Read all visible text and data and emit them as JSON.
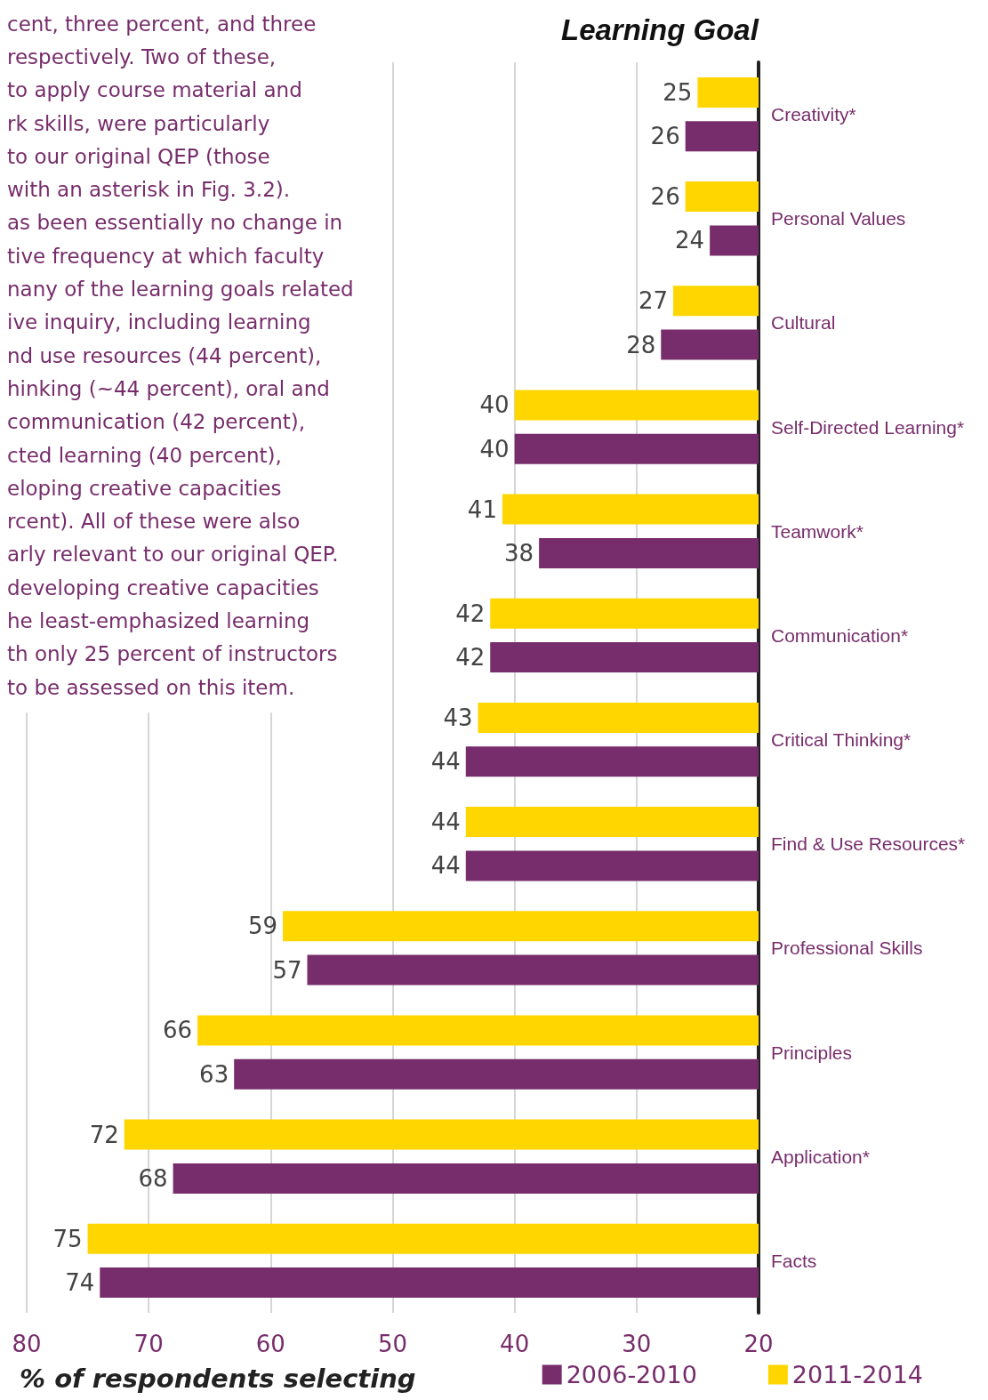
{
  "chart_data": {
    "type": "bar",
    "orientation": "horizontal",
    "title": "Learning Goal",
    "xlabel": "% of respondents selecting",
    "categories": [
      "Creativity*",
      "Personal Values",
      "Cultural",
      "Self-Directed Learning*",
      "Teamwork*",
      "Communication*",
      "Critical Thinking*",
      "Find & Use Resources*",
      "Professional Skills",
      "Principles",
      "Application*",
      "Facts"
    ],
    "series": [
      {
        "name": "2006-2010",
        "color": "#772d6b",
        "values": [
          26,
          24,
          28,
          40,
          38,
          42,
          44,
          44,
          57,
          63,
          68,
          74
        ]
      },
      {
        "name": "2011-2014",
        "color": "#ffd600",
        "values": [
          25,
          26,
          27,
          40,
          41,
          42,
          43,
          44,
          59,
          66,
          72,
          75
        ]
      }
    ],
    "xlim": [
      80,
      20
    ],
    "xticks": [
      80,
      70,
      60,
      50,
      40,
      30,
      20
    ],
    "grid": "x",
    "legend": "bottom right",
    "data_labels": true,
    "annotations": [
      "cent, three percent, and three\nrespectively. Two of these,\nto apply course material and\nrk skills, were particularly\nto our original QEP (those\nwith an asterisk in Fig. 3.2).\nas been essentially no change in\ntive frequency at which faculty\nnany of the learning goals related\nive inquiry, including learning\nnd use resources (44 percent),\nhinking (~44 percent), oral and\ncommunication (42 percent),\ncted learning (40 percent),\neloping creative capacities\nrcent). All of these were also\narly relevant to our original QEP.\ndeveloping creative capacities\nhe least-emphasized learning\nth only 25 percent of instructors\nto be assessed on this item."
    ]
  }
}
